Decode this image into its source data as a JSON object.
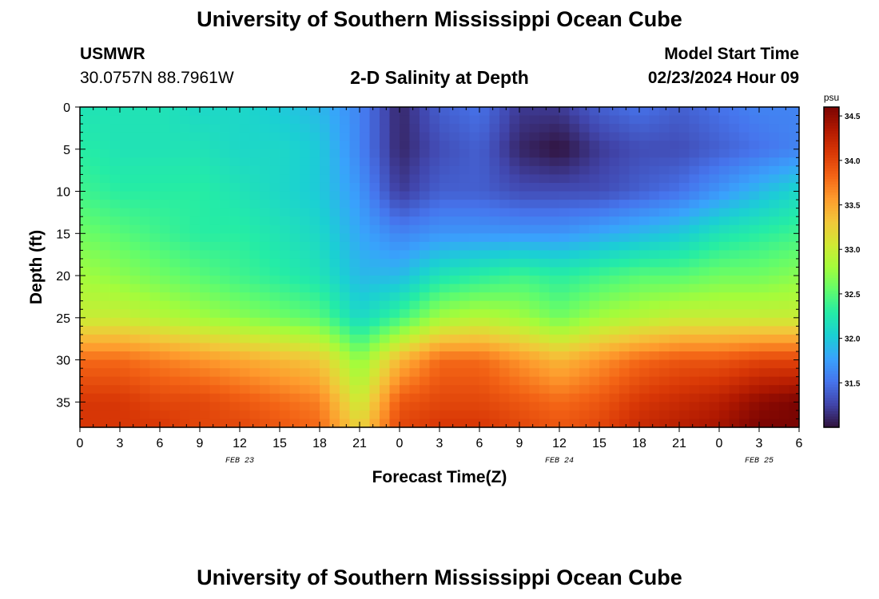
{
  "page": {
    "title_top": "University of Southern Mississippi Ocean Cube",
    "title_bottom": "University of Southern Mississippi Ocean Cube",
    "station_name": "USMWR",
    "station_coords": "30.0757N  88.7961W",
    "plot_title": "2-D Salinity at Depth",
    "model_label": "Model Start Time",
    "model_time": "02/23/2024 Hour 09"
  },
  "chart_data": {
    "type": "heatmap",
    "title": "2-D Salinity at Depth",
    "xlabel": "Forecast Time(Z)",
    "ylabel": "Depth (ft)",
    "x_tick_labels": [
      "0",
      "3",
      "6",
      "9",
      "12",
      "15",
      "18",
      "21",
      "0",
      "3",
      "6",
      "9",
      "12",
      "15",
      "18",
      "21",
      "0",
      "3",
      "6"
    ],
    "x_ticks_hours": [
      0,
      3,
      6,
      9,
      12,
      15,
      18,
      21,
      24,
      27,
      30,
      33,
      36,
      39,
      42,
      45,
      48,
      51,
      54
    ],
    "date_labels": [
      {
        "label": "FEB 23",
        "hour": 12
      },
      {
        "label": "FEB 24",
        "hour": 36
      },
      {
        "label": "FEB 25",
        "hour": 51
      }
    ],
    "xlim_hours": [
      0,
      54
    ],
    "y_ticks": [
      0,
      5,
      10,
      15,
      20,
      25,
      30,
      35
    ],
    "ylim": [
      0,
      38
    ],
    "y_inverted": true,
    "colorbar": {
      "label": "psu",
      "min": 31.0,
      "max": 34.6,
      "ticks": [
        31.5,
        32.0,
        32.5,
        33.0,
        33.5,
        34.0,
        34.5
      ],
      "colors": [
        "#30123b",
        "#4145ab",
        "#4675ed",
        "#39a2fc",
        "#1bcfd4",
        "#24eca6",
        "#61fc6c",
        "#a4fc3b",
        "#d1e834",
        "#f3c63a",
        "#fe9b2d",
        "#f36315",
        "#d93806",
        "#b11901",
        "#7a0402"
      ]
    },
    "grid": false,
    "salinity_grid": {
      "time_hours": [
        0,
        3,
        6,
        9,
        12,
        15,
        18,
        21,
        24,
        27,
        30,
        33,
        36,
        39,
        42,
        45,
        48,
        51,
        54
      ],
      "depth_ft": [
        0,
        5,
        10,
        15,
        20,
        25,
        30,
        35,
        38
      ],
      "values": [
        [
          32.2,
          32.2,
          32.2,
          32.1,
          32.1,
          32.0,
          31.9,
          31.6,
          31.1,
          31.4,
          31.5,
          31.2,
          31.2,
          31.4,
          31.5,
          31.4,
          31.5,
          31.6,
          31.6
        ],
        [
          32.3,
          32.2,
          32.2,
          32.2,
          32.1,
          32.1,
          32.0,
          31.6,
          31.1,
          31.3,
          31.4,
          31.1,
          31.0,
          31.2,
          31.3,
          31.3,
          31.4,
          31.5,
          31.6
        ],
        [
          32.4,
          32.3,
          32.3,
          32.3,
          32.2,
          32.1,
          32.0,
          31.7,
          31.2,
          31.4,
          31.4,
          31.3,
          31.3,
          31.3,
          31.4,
          31.5,
          31.7,
          31.9,
          32.1
        ],
        [
          32.6,
          32.5,
          32.4,
          32.3,
          32.3,
          32.2,
          32.1,
          31.8,
          31.6,
          31.7,
          31.7,
          31.7,
          31.7,
          31.8,
          31.9,
          32.0,
          32.2,
          32.3,
          32.4
        ],
        [
          32.8,
          32.7,
          32.6,
          32.5,
          32.4,
          32.3,
          32.2,
          31.9,
          31.9,
          32.2,
          32.3,
          32.4,
          32.3,
          32.4,
          32.5,
          32.5,
          32.6,
          32.6,
          32.7
        ],
        [
          33.0,
          33.0,
          32.9,
          32.8,
          32.7,
          32.6,
          32.5,
          32.1,
          32.4,
          32.8,
          32.9,
          32.8,
          32.6,
          32.8,
          32.9,
          33.0,
          33.0,
          33.0,
          33.0
        ],
        [
          33.8,
          33.8,
          33.7,
          33.6,
          33.5,
          33.4,
          33.3,
          32.7,
          33.4,
          33.8,
          33.8,
          33.6,
          33.4,
          33.6,
          33.8,
          33.9,
          33.9,
          34.0,
          34.0
        ],
        [
          34.1,
          34.1,
          34.0,
          34.0,
          33.9,
          33.8,
          33.7,
          33.0,
          33.9,
          34.0,
          34.0,
          33.9,
          33.8,
          33.9,
          34.1,
          34.2,
          34.3,
          34.5,
          34.6
        ],
        [
          34.1,
          34.1,
          34.1,
          34.0,
          34.0,
          33.9,
          33.8,
          33.2,
          34.0,
          34.1,
          34.1,
          34.0,
          33.9,
          34.0,
          34.2,
          34.3,
          34.4,
          34.6,
          34.6
        ]
      ]
    }
  }
}
